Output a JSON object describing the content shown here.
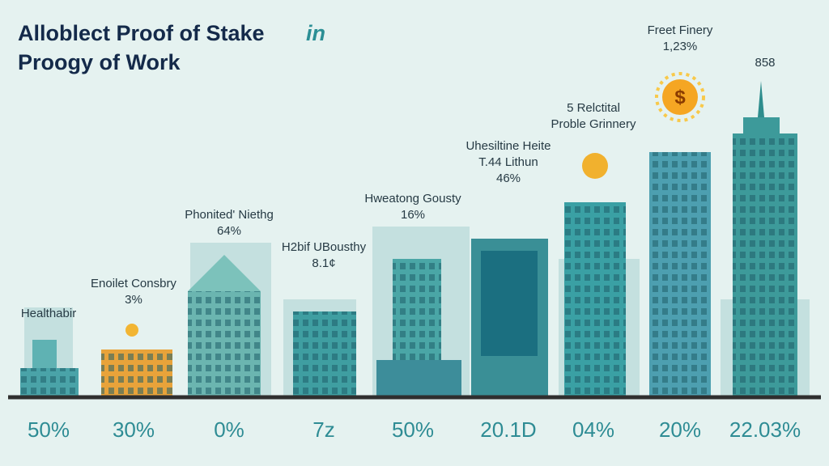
{
  "header": {
    "title_lines": [
      "Alloblect Proof of Stake",
      "Proogy of Work"
    ],
    "title_accent": "in"
  },
  "sun_symbol": "$",
  "buildings": [
    {
      "label_lines": [
        "Healthabir"
      ],
      "bottom": "50%"
    },
    {
      "label_lines": [
        "Enoilet Consbry",
        "3%"
      ],
      "bottom": "30%"
    },
    {
      "label_lines": [
        "Phonited' Niethg",
        "64%"
      ],
      "bottom": "0%"
    },
    {
      "label_lines": [
        "H2bif UBousthy",
        "8.1¢"
      ],
      "bottom": "7z"
    },
    {
      "label_lines": [
        "Hweatong Gousty",
        "16%"
      ],
      "bottom": "50%"
    },
    {
      "label_lines": [
        "Uhesiltine Heite",
        "T.44 Lithun",
        "46%"
      ],
      "bottom": "20.1D"
    },
    {
      "label_lines": [
        "5 Relctital",
        "Proble Grinnery"
      ],
      "bottom": "04%"
    },
    {
      "label_lines": [
        "Freet Finery",
        "1,23%"
      ],
      "bottom": "20%"
    },
    {
      "label_lines": [
        "858"
      ],
      "bottom": "22.03%"
    }
  ]
}
